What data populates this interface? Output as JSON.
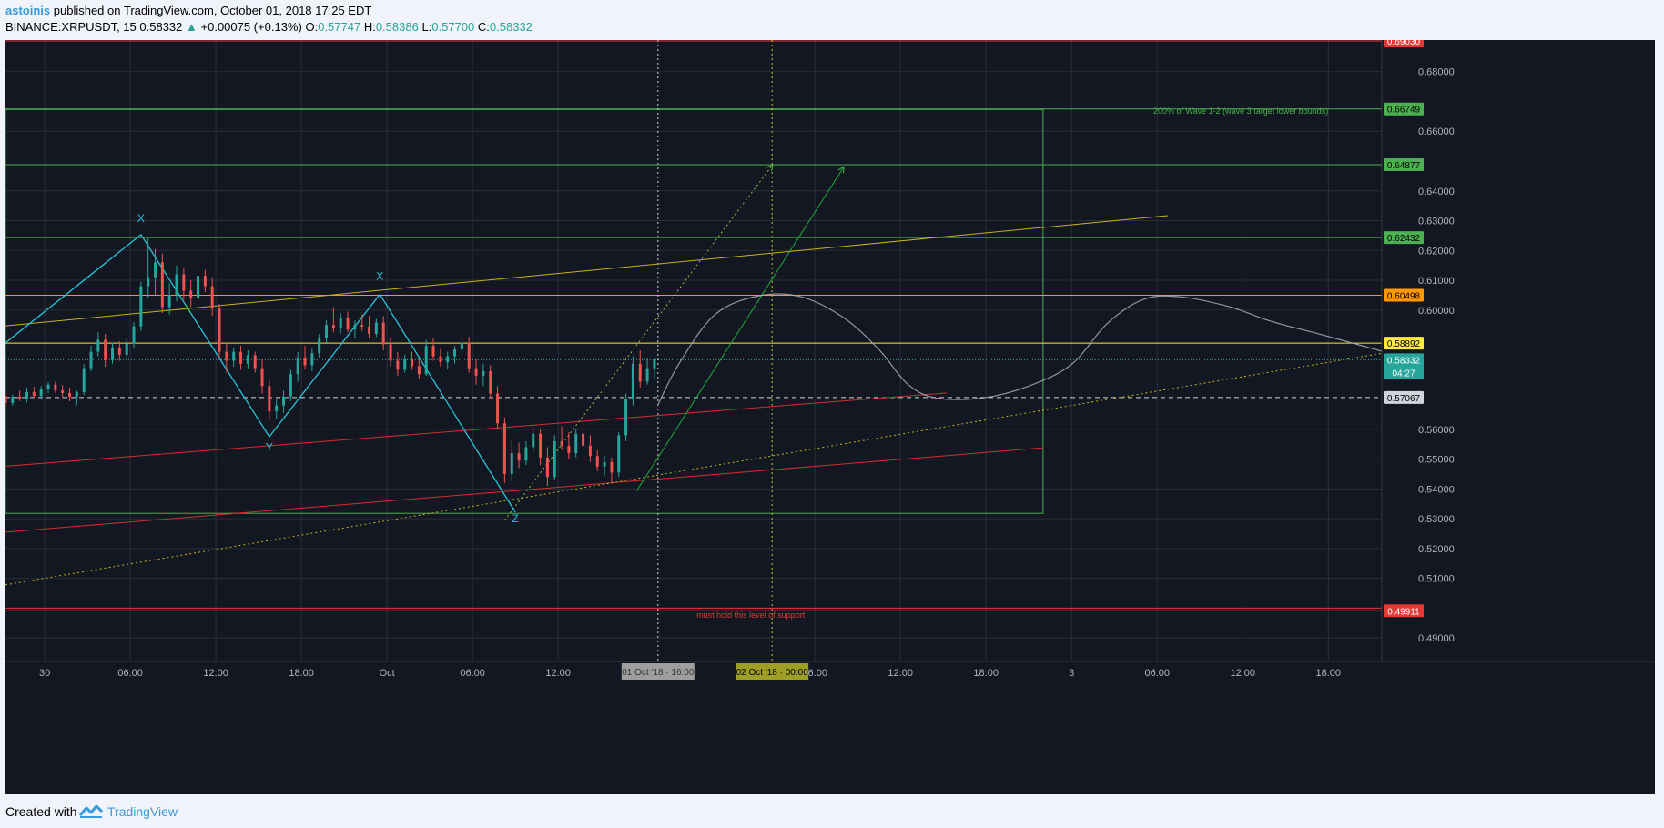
{
  "header": {
    "author": "astoinis",
    "published_text": "published on TradingView.com, October 01, 2018 17:25 EDT",
    "symbol": "BINANCE:XRPUSDT, 15",
    "last": "0.58332",
    "change_arrow": "▲",
    "change": "+0.00075 (+0.13%)",
    "o_label": "O:",
    "o_value": "0.57747",
    "h_label": "H:",
    "h_value": "0.58386",
    "l_label": "L:",
    "l_value": "0.57700",
    "c_label": "C:",
    "c_value": "0.58332"
  },
  "footer": {
    "created_with": "Created with",
    "brand": "TradingView"
  },
  "chart_data": {
    "type": "candlestick",
    "symbol": "BINANCE:XRPUSDT",
    "interval": "15",
    "y_range": [
      0.4821,
      0.6906
    ],
    "y_ticks": [
      0.49,
      0.51,
      0.52,
      0.53,
      0.54,
      0.55,
      0.56,
      0.6,
      0.61,
      0.62,
      0.63,
      0.64,
      0.66,
      0.68
    ],
    "x_ticks": [
      {
        "label": "30",
        "t": -108
      },
      {
        "label": "06:00",
        "t": -84
      },
      {
        "label": "12:00",
        "t": -60
      },
      {
        "label": "18:00",
        "t": -36
      },
      {
        "label": "Oct",
        "t": -12
      },
      {
        "label": "06:00",
        "t": 12
      },
      {
        "label": "12:00",
        "t": 36
      },
      {
        "label": "06:00",
        "t": 108
      },
      {
        "label": "12:00",
        "t": 132
      },
      {
        "label": "18:00",
        "t": 156
      },
      {
        "label": "3",
        "t": 180
      },
      {
        "label": "06:00",
        "t": 204
      },
      {
        "label": "12:00",
        "t": 228
      },
      {
        "label": "18:00",
        "t": 252
      }
    ],
    "x_range": [
      -119,
      267
    ],
    "price_labels": [
      {
        "value": 0.6903,
        "text": "0.69030",
        "bg": "#e53935",
        "fg": "#ffffff"
      },
      {
        "value": 0.66749,
        "text": "0.66749",
        "bg": "#4caf50",
        "fg": "#000000"
      },
      {
        "value": 0.64877,
        "text": "0.64877",
        "bg": "#4caf50",
        "fg": "#000000"
      },
      {
        "value": 0.62432,
        "text": "0.62432",
        "bg": "#4caf50",
        "fg": "#000000"
      },
      {
        "value": 0.60498,
        "text": "0.60498",
        "bg": "#ff9800",
        "fg": "#000000"
      },
      {
        "value": 0.58892,
        "text": "0.58892",
        "bg": "#ffeb3b",
        "fg": "#000000"
      },
      {
        "value": 0.58332,
        "text": "0.58332",
        "bg": "#26a69a",
        "fg": "#ffffff",
        "sub": "04:27"
      },
      {
        "value": 0.57067,
        "text": "0.57067",
        "bg": "#d1d4dc",
        "fg": "#000000"
      },
      {
        "value": 0.49911,
        "text": "0.49911",
        "bg": "#e53935",
        "fg": "#ffffff"
      }
    ],
    "time_labels": [
      {
        "text": "01 Oct '18 · 16:00",
        "t": 64,
        "bg": "#9e9e9e",
        "fg": "#333333"
      },
      {
        "text": "02 Oct '18 · 00:00",
        "t": 96,
        "bg": "#9e9d24",
        "fg": "#000000"
      }
    ],
    "annotations": [
      {
        "text": "200% of Wave 1-2 (wave 3 target lower bounds)",
        "t": 252,
        "value": 0.6658,
        "color": "#4caf50"
      },
      {
        "text": "must hold this level of support",
        "t": 90,
        "value": 0.4968,
        "color": "#e53935"
      }
    ],
    "wave_labels": [
      {
        "text": "X",
        "t": -81,
        "value": 0.6295
      },
      {
        "text": "Y",
        "t": -45,
        "value": 0.5527
      },
      {
        "text": "X",
        "t": -14,
        "value": 0.6102
      },
      {
        "text": "Z",
        "t": 24,
        "value": 0.5288
      }
    ],
    "horizontal_levels": [
      {
        "value": 0.6903,
        "color": "#e53935",
        "style": "solid"
      },
      {
        "value": 0.66749,
        "color": "#4caf50",
        "style": "solid"
      },
      {
        "value": 0.64877,
        "color": "#4caf50",
        "style": "solid"
      },
      {
        "value": 0.62432,
        "color": "#4caf50",
        "style": "solid"
      },
      {
        "value": 0.60498,
        "color": "#ff9800",
        "style": "solid"
      },
      {
        "value": 0.58892,
        "color": "#ffeb3b",
        "style": "solid"
      },
      {
        "value": 0.58332,
        "color": "#26a69a",
        "style": "dotted"
      },
      {
        "value": 0.57067,
        "color": "#d1d4dc",
        "style": "dashed"
      },
      {
        "value": 0.49911,
        "color": "#e53935",
        "style": "solid"
      },
      {
        "value": 0.5,
        "color": "#e53935",
        "style": "solid"
      }
    ],
    "target_box": {
      "t0": -119,
      "t1": 172,
      "top": 0.6673,
      "bottom": 0.5318,
      "color": "#4caf50"
    },
    "vertical_lines": [
      {
        "t": 64,
        "color": "#d1d4dc"
      },
      {
        "t": 96,
        "color": "#c0ca33"
      }
    ],
    "trend_lines": [
      {
        "t1": -119,
        "v1": 0.5947,
        "t2": 207,
        "v2": 0.6317,
        "color": "#c9b21b",
        "dash": ""
      },
      {
        "t1": -119,
        "v1": 0.5476,
        "t2": 145,
        "v2": 0.5722,
        "color": "#d32f2f",
        "dash": ""
      },
      {
        "t1": -119,
        "v1": 0.5255,
        "t2": 172,
        "v2": 0.5538,
        "color": "#d32f2f",
        "dash": ""
      },
      {
        "t1": -119,
        "v1": 0.5078,
        "t2": 267,
        "v2": 0.5855,
        "color": "#c9b21b",
        "dash": "2 3"
      },
      {
        "t1": 21,
        "v1": 0.5295,
        "t2": 96,
        "v2": 0.6485,
        "color": "#8bc34a",
        "dash": "2 3",
        "arrow": true
      },
      {
        "t1": 58,
        "v1": 0.5393,
        "t2": 116,
        "v2": 0.6478,
        "color": "#1faa3a",
        "dash": "",
        "arrow": true
      }
    ],
    "wave_path": [
      {
        "t": -119,
        "v": 0.589
      },
      {
        "t": -81,
        "v": 0.6253
      },
      {
        "t": -45,
        "v": 0.5575
      },
      {
        "t": -14,
        "v": 0.6053
      },
      {
        "t": 24,
        "v": 0.5322
      }
    ],
    "projection_path": [
      {
        "t": 64,
        "v": 0.5683
      },
      {
        "t": 70,
        "v": 0.5822
      },
      {
        "t": 80,
        "v": 0.5985
      },
      {
        "t": 92,
        "v": 0.6047
      },
      {
        "t": 104,
        "v": 0.6045
      },
      {
        "t": 116,
        "v": 0.5975
      },
      {
        "t": 126,
        "v": 0.5867
      },
      {
        "t": 134,
        "v": 0.5752
      },
      {
        "t": 142,
        "v": 0.5705
      },
      {
        "t": 155,
        "v": 0.5705
      },
      {
        "t": 168,
        "v": 0.5745
      },
      {
        "t": 180,
        "v": 0.5818
      },
      {
        "t": 190,
        "v": 0.5955
      },
      {
        "t": 200,
        "v": 0.6035
      },
      {
        "t": 210,
        "v": 0.6045
      },
      {
        "t": 224,
        "v": 0.6012
      },
      {
        "t": 236,
        "v": 0.5962
      },
      {
        "t": 250,
        "v": 0.5918
      },
      {
        "t": 267,
        "v": 0.5862
      }
    ],
    "candles": [
      [
        -119,
        0.5711,
        0.5719,
        0.568,
        0.5688
      ],
      [
        -117,
        0.5688,
        0.5717,
        0.568,
        0.571
      ],
      [
        -115,
        0.571,
        0.573,
        0.5695,
        0.5701
      ],
      [
        -113,
        0.5701,
        0.574,
        0.569,
        0.5725
      ],
      [
        -111,
        0.5725,
        0.5743,
        0.5705,
        0.5712
      ],
      [
        -109,
        0.5712,
        0.5745,
        0.57,
        0.5735
      ],
      [
        -107,
        0.5735,
        0.5758,
        0.5721,
        0.575
      ],
      [
        -105,
        0.575,
        0.576,
        0.5722,
        0.5731
      ],
      [
        -103,
        0.5731,
        0.5748,
        0.5705,
        0.5722
      ],
      [
        -101,
        0.5722,
        0.574,
        0.5694,
        0.5709
      ],
      [
        -99,
        0.5709,
        0.573,
        0.568,
        0.5725
      ],
      [
        -97,
        0.5725,
        0.5818,
        0.5715,
        0.5805
      ],
      [
        -95,
        0.5805,
        0.588,
        0.5795,
        0.586
      ],
      [
        -93,
        0.586,
        0.5925,
        0.5845,
        0.59
      ],
      [
        -91,
        0.59,
        0.592,
        0.581,
        0.5832
      ],
      [
        -89,
        0.5832,
        0.589,
        0.582,
        0.5875
      ],
      [
        -87,
        0.5875,
        0.5895,
        0.583,
        0.585
      ],
      [
        -85,
        0.585,
        0.5905,
        0.584,
        0.5888
      ],
      [
        -83,
        0.5888,
        0.596,
        0.587,
        0.5945
      ],
      [
        -81,
        0.5945,
        0.6095,
        0.593,
        0.608
      ],
      [
        -79,
        0.608,
        0.624,
        0.604,
        0.611
      ],
      [
        -77,
        0.611,
        0.6205,
        0.605,
        0.616
      ],
      [
        -75,
        0.616,
        0.619,
        0.599,
        0.601
      ],
      [
        -73,
        0.601,
        0.609,
        0.5985,
        0.605
      ],
      [
        -71,
        0.605,
        0.615,
        0.603,
        0.612
      ],
      [
        -69,
        0.612,
        0.614,
        0.6035,
        0.6065
      ],
      [
        -67,
        0.6065,
        0.61,
        0.601,
        0.604
      ],
      [
        -65,
        0.604,
        0.614,
        0.6025,
        0.6115
      ],
      [
        -63,
        0.6115,
        0.6135,
        0.606,
        0.608
      ],
      [
        -61,
        0.608,
        0.611,
        0.598,
        0.6005
      ],
      [
        -59,
        0.6005,
        0.602,
        0.584,
        0.586
      ],
      [
        -57,
        0.586,
        0.589,
        0.579,
        0.583
      ],
      [
        -55,
        0.583,
        0.5875,
        0.581,
        0.586
      ],
      [
        -53,
        0.586,
        0.588,
        0.58,
        0.582
      ],
      [
        -51,
        0.582,
        0.5865,
        0.5805,
        0.5848
      ],
      [
        -49,
        0.5848,
        0.586,
        0.579,
        0.5805
      ],
      [
        -47,
        0.5805,
        0.5835,
        0.572,
        0.5745
      ],
      [
        -45,
        0.5745,
        0.577,
        0.563,
        0.566
      ],
      [
        -43,
        0.566,
        0.57,
        0.5635,
        0.568
      ],
      [
        -41,
        0.568,
        0.573,
        0.5655,
        0.571
      ],
      [
        -39,
        0.571,
        0.58,
        0.5695,
        0.5785
      ],
      [
        -37,
        0.5785,
        0.586,
        0.576,
        0.584
      ],
      [
        -35,
        0.584,
        0.588,
        0.58,
        0.5815
      ],
      [
        -33,
        0.5815,
        0.587,
        0.5795,
        0.5855
      ],
      [
        -31,
        0.5855,
        0.592,
        0.584,
        0.5905
      ],
      [
        -29,
        0.5905,
        0.5965,
        0.589,
        0.595
      ],
      [
        -27,
        0.595,
        0.601,
        0.5925,
        0.594
      ],
      [
        -25,
        0.594,
        0.599,
        0.592,
        0.5975
      ],
      [
        -23,
        0.5975,
        0.5995,
        0.5925,
        0.5935
      ],
      [
        -21,
        0.5935,
        0.5965,
        0.5905,
        0.595
      ],
      [
        -19,
        0.595,
        0.5985,
        0.593,
        0.5945
      ],
      [
        -17,
        0.5945,
        0.598,
        0.5905,
        0.592
      ],
      [
        -15,
        0.592,
        0.597,
        0.591,
        0.5958
      ],
      [
        -13,
        0.5958,
        0.598,
        0.5865,
        0.5885
      ],
      [
        -11,
        0.5885,
        0.591,
        0.581,
        0.583
      ],
      [
        -9,
        0.583,
        0.586,
        0.578,
        0.58
      ],
      [
        -7,
        0.58,
        0.585,
        0.579,
        0.5835
      ],
      [
        -5,
        0.5835,
        0.586,
        0.58,
        0.5812
      ],
      [
        -3,
        0.5812,
        0.584,
        0.577,
        0.5785
      ],
      [
        -1,
        0.5785,
        0.59,
        0.578,
        0.588
      ],
      [
        1,
        0.588,
        0.5905,
        0.583,
        0.5845
      ],
      [
        3,
        0.5845,
        0.587,
        0.581,
        0.5825
      ],
      [
        5,
        0.5825,
        0.586,
        0.58,
        0.5845
      ],
      [
        7,
        0.5845,
        0.588,
        0.582,
        0.5868
      ],
      [
        9,
        0.5868,
        0.5915,
        0.585,
        0.589
      ],
      [
        11,
        0.589,
        0.591,
        0.579,
        0.5805
      ],
      [
        13,
        0.5805,
        0.5835,
        0.575,
        0.578
      ],
      [
        15,
        0.578,
        0.582,
        0.5745,
        0.5795
      ],
      [
        17,
        0.5795,
        0.5815,
        0.57,
        0.572
      ],
      [
        19,
        0.572,
        0.5745,
        0.56,
        0.562
      ],
      [
        21,
        0.562,
        0.564,
        0.542,
        0.545
      ],
      [
        23,
        0.545,
        0.556,
        0.5425,
        0.552
      ],
      [
        25,
        0.552,
        0.5555,
        0.547,
        0.5495
      ],
      [
        27,
        0.5495,
        0.556,
        0.548,
        0.554
      ],
      [
        29,
        0.554,
        0.5605,
        0.552,
        0.5585
      ],
      [
        31,
        0.5585,
        0.56,
        0.548,
        0.5505
      ],
      [
        33,
        0.5505,
        0.554,
        0.541,
        0.544
      ],
      [
        35,
        0.544,
        0.558,
        0.543,
        0.556
      ],
      [
        37,
        0.556,
        0.561,
        0.553,
        0.5545
      ],
      [
        39,
        0.5545,
        0.559,
        0.55,
        0.552
      ],
      [
        41,
        0.552,
        0.56,
        0.5505,
        0.5585
      ],
      [
        43,
        0.5585,
        0.562,
        0.553,
        0.5545
      ],
      [
        45,
        0.5545,
        0.558,
        0.549,
        0.551
      ],
      [
        47,
        0.551,
        0.553,
        0.546,
        0.5475
      ],
      [
        49,
        0.5475,
        0.551,
        0.5445,
        0.549
      ],
      [
        51,
        0.549,
        0.5505,
        0.542,
        0.5455
      ],
      [
        53,
        0.5455,
        0.559,
        0.544,
        0.558
      ],
      [
        55,
        0.558,
        0.572,
        0.556,
        0.57
      ],
      [
        57,
        0.57,
        0.5845,
        0.568,
        0.582
      ],
      [
        59,
        0.582,
        0.5865,
        0.574,
        0.576
      ],
      [
        61,
        0.576,
        0.584,
        0.575,
        0.5805
      ],
      [
        63,
        0.5805,
        0.5838,
        0.577,
        0.5833
      ]
    ]
  }
}
